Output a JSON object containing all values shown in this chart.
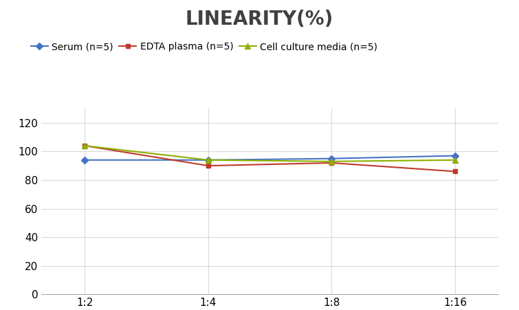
{
  "title": "LINEARITY(%)",
  "title_fontsize": 20,
  "title_fontweight": "bold",
  "x_labels": [
    "1:2",
    "1:4",
    "1:8",
    "1:16"
  ],
  "x_positions": [
    0,
    1,
    2,
    3
  ],
  "series": [
    {
      "label": "Serum (n=5)",
      "values": [
        94,
        94,
        95,
        97
      ],
      "color": "#4472C4",
      "marker": "D",
      "markersize": 5
    },
    {
      "label": "EDTA plasma (n=5)",
      "values": [
        104,
        90,
        92,
        86
      ],
      "color": "#C0392B",
      "marker": "s",
      "markersize": 5
    },
    {
      "label": "Cell culture media (n=5)",
      "values": [
        104,
        94,
        93,
        94
      ],
      "color": "#8DB000",
      "marker": "^",
      "markersize": 6
    }
  ],
  "ylim": [
    0,
    130
  ],
  "yticks": [
    0,
    20,
    40,
    60,
    80,
    100,
    120
  ],
  "grid_color": "#D9D9D9",
  "background_color": "#FFFFFF",
  "legend_fontsize": 10,
  "axis_fontsize": 11,
  "title_color": "#404040"
}
